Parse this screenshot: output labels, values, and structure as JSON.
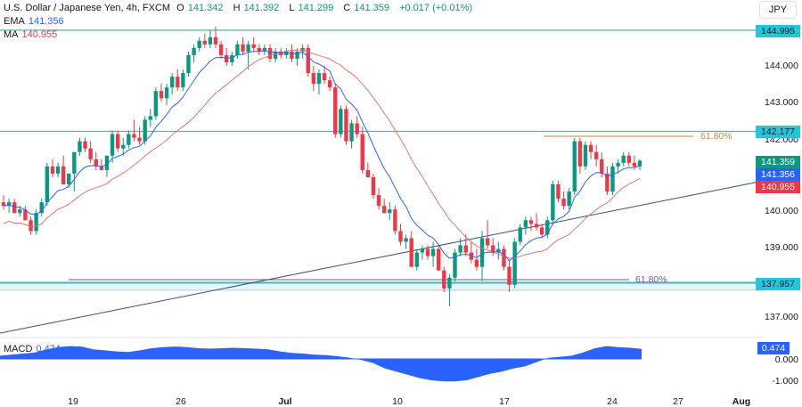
{
  "header": {
    "symbol": "U.S. Dollar / Japanese Yen, 4h, FXCM",
    "open_label": "O",
    "open": "141.342",
    "high_label": "H",
    "high": "141.392",
    "low_label": "L",
    "low": "141.299",
    "close_label": "C",
    "close": "141.359",
    "change": "+0.017 (+0.01%)",
    "ema_label": "EMA",
    "ema_value": "141.356",
    "ma_label": "MA",
    "ma_value": "140.955",
    "currency": "JPY"
  },
  "price_axis": {
    "ticks": [
      "144.000",
      "143.000",
      "142.000",
      "140.000",
      "139.000",
      "137.000"
    ],
    "labels": {
      "resistance_top": "144.995",
      "resistance_mid": "142.177",
      "last_price": "141.359",
      "ema": "141.356",
      "ma": "140.955",
      "support": "137.957"
    }
  },
  "annotations": {
    "fib_upper": "61.80%",
    "fib_lower": "61.80%"
  },
  "macd": {
    "label": "MACD",
    "value": "0.474",
    "ticks": [
      "0.000",
      "-1.000"
    ]
  },
  "time_axis": [
    "19",
    "26",
    "Jul",
    "10",
    "17",
    "24",
    "27",
    "Aug"
  ],
  "colors": {
    "up": "#089981",
    "down": "#f23645",
    "ema": "#2962ff",
    "ma": "#e57373",
    "hline": "#4fb3bf",
    "trend": "#3c4d7a",
    "macd": "#2962ff",
    "fib_upper": "#c98a3e",
    "fib_lower": "#6a5a9a"
  },
  "chart_data": {
    "type": "candlestick",
    "title": "U.S. Dollar / Japanese Yen, 4h, FXCM",
    "ylabel": "JPY",
    "ylim": [
      136.6,
      145.4
    ],
    "x_tick_labels": [
      "19",
      "26",
      "Jul",
      "10",
      "17",
      "24",
      "27",
      "Aug"
    ],
    "horizontal_levels": [
      144.995,
      142.177,
      137.957
    ],
    "fib_levels": [
      {
        "label": "61.80%",
        "price": 142.05
      },
      {
        "label": "61.80%",
        "price": 138.05
      }
    ],
    "candles": [
      [
        140.2,
        140.4,
        140.0,
        140.1
      ],
      [
        140.1,
        140.3,
        139.9,
        140.2
      ],
      [
        140.2,
        140.3,
        139.9,
        139.9
      ],
      [
        139.9,
        140.1,
        139.8,
        140.0
      ],
      [
        140.0,
        140.1,
        139.7,
        139.7
      ],
      [
        139.7,
        139.8,
        139.3,
        139.4
      ],
      [
        139.4,
        140.0,
        139.3,
        139.9
      ],
      [
        139.9,
        140.3,
        139.8,
        140.2
      ],
      [
        140.2,
        141.3,
        140.1,
        141.2
      ],
      [
        141.2,
        141.4,
        140.9,
        141.0
      ],
      [
        141.0,
        141.3,
        140.9,
        141.2
      ],
      [
        141.2,
        141.5,
        140.8,
        140.7
      ],
      [
        140.7,
        141.0,
        140.6,
        141.0
      ],
      [
        141.0,
        141.6,
        140.5,
        141.6
      ],
      [
        141.6,
        142.0,
        141.5,
        141.9
      ],
      [
        141.9,
        142.0,
        141.6,
        141.7
      ],
      [
        141.7,
        141.9,
        141.3,
        141.4
      ],
      [
        141.4,
        141.6,
        141.1,
        141.2
      ],
      [
        141.2,
        141.4,
        141.1,
        141.1
      ],
      [
        141.1,
        141.5,
        140.9,
        141.5
      ],
      [
        141.5,
        142.2,
        141.3,
        142.1
      ],
      [
        142.1,
        142.2,
        141.6,
        141.7
      ],
      [
        141.7,
        142.0,
        141.5,
        141.8
      ],
      [
        141.8,
        142.2,
        141.7,
        142.1
      ],
      [
        142.1,
        142.5,
        141.9,
        142.0
      ],
      [
        142.0,
        142.3,
        141.8,
        141.9
      ],
      [
        141.9,
        142.6,
        141.8,
        142.5
      ],
      [
        142.5,
        142.8,
        142.3,
        142.6
      ],
      [
        142.6,
        143.4,
        142.5,
        143.3
      ],
      [
        143.3,
        143.5,
        143.0,
        143.1
      ],
      [
        143.1,
        143.5,
        142.9,
        143.4
      ],
      [
        143.4,
        143.8,
        143.2,
        143.7
      ],
      [
        143.7,
        143.9,
        143.3,
        143.4
      ],
      [
        143.4,
        143.9,
        143.3,
        143.8
      ],
      [
        143.8,
        144.4,
        143.7,
        144.3
      ],
      [
        144.3,
        144.6,
        144.1,
        144.5
      ],
      [
        144.5,
        144.8,
        144.4,
        144.7
      ],
      [
        144.7,
        144.9,
        144.5,
        144.6
      ],
      [
        144.6,
        145.0,
        144.5,
        144.8
      ],
      [
        144.8,
        145.1,
        144.5,
        144.6
      ],
      [
        144.6,
        144.7,
        144.2,
        144.3
      ],
      [
        144.3,
        144.5,
        144.0,
        144.1
      ],
      [
        144.1,
        144.4,
        144.0,
        144.3
      ],
      [
        144.3,
        144.7,
        144.2,
        144.6
      ],
      [
        144.6,
        144.8,
        144.3,
        144.4
      ],
      [
        144.4,
        144.7,
        143.9,
        144.6
      ],
      [
        144.6,
        144.8,
        144.4,
        144.5
      ],
      [
        144.5,
        144.6,
        144.3,
        144.4
      ],
      [
        144.4,
        144.6,
        144.3,
        144.5
      ],
      [
        144.5,
        144.6,
        144.1,
        144.2
      ],
      [
        144.2,
        144.5,
        144.1,
        144.4
      ],
      [
        144.4,
        144.5,
        144.2,
        144.3
      ],
      [
        144.3,
        144.5,
        144.2,
        144.4
      ],
      [
        144.4,
        144.6,
        144.1,
        144.2
      ],
      [
        144.2,
        144.5,
        144.0,
        144.4
      ],
      [
        144.4,
        144.6,
        144.2,
        144.5
      ],
      [
        144.5,
        144.6,
        143.7,
        143.8
      ],
      [
        143.8,
        144.0,
        143.3,
        143.5
      ],
      [
        143.5,
        143.9,
        143.2,
        143.8
      ],
      [
        143.8,
        144.0,
        143.5,
        143.6
      ],
      [
        143.6,
        143.7,
        143.3,
        143.4
      ],
      [
        143.4,
        143.5,
        142.0,
        142.1
      ],
      [
        142.1,
        142.9,
        142.0,
        142.8
      ],
      [
        142.8,
        142.9,
        141.8,
        141.9
      ],
      [
        141.9,
        142.5,
        141.7,
        142.4
      ],
      [
        142.4,
        142.6,
        142.0,
        142.1
      ],
      [
        142.1,
        142.3,
        141.0,
        141.1
      ],
      [
        141.1,
        141.3,
        140.9,
        140.9
      ],
      [
        140.9,
        141.0,
        140.3,
        140.4
      ],
      [
        140.4,
        140.6,
        140.0,
        140.1
      ],
      [
        140.1,
        140.3,
        139.9,
        139.9
      ],
      [
        139.9,
        140.2,
        139.7,
        140.0
      ],
      [
        140.0,
        140.1,
        139.3,
        139.4
      ],
      [
        139.4,
        139.6,
        139.0,
        139.1
      ],
      [
        139.1,
        139.3,
        138.9,
        139.2
      ],
      [
        139.2,
        139.4,
        138.4,
        138.4
      ],
      [
        138.4,
        138.9,
        138.3,
        138.8
      ],
      [
        138.8,
        139.0,
        138.6,
        138.9
      ],
      [
        138.9,
        139.0,
        138.6,
        138.7
      ],
      [
        138.7,
        139.1,
        138.4,
        138.9
      ],
      [
        138.9,
        139.0,
        138.3,
        138.3
      ],
      [
        138.3,
        138.4,
        137.7,
        137.8
      ],
      [
        137.8,
        138.2,
        137.3,
        138.1
      ],
      [
        138.1,
        138.9,
        138.0,
        138.8
      ],
      [
        138.8,
        139.2,
        138.7,
        139.0
      ],
      [
        139.0,
        139.3,
        138.7,
        138.8
      ],
      [
        138.8,
        139.1,
        138.5,
        138.6
      ],
      [
        138.6,
        138.9,
        138.3,
        138.4
      ],
      [
        138.4,
        139.4,
        138.0,
        139.2
      ],
      [
        139.2,
        139.7,
        138.9,
        139.0
      ],
      [
        139.0,
        139.2,
        138.7,
        138.8
      ],
      [
        138.8,
        139.1,
        138.6,
        138.9
      ],
      [
        138.9,
        139.0,
        138.3,
        138.4
      ],
      [
        138.4,
        138.6,
        137.7,
        137.9
      ],
      [
        137.9,
        139.2,
        137.8,
        139.1
      ],
      [
        139.1,
        139.6,
        139.0,
        139.5
      ],
      [
        139.5,
        139.8,
        139.3,
        139.7
      ],
      [
        139.7,
        139.8,
        139.4,
        139.6
      ],
      [
        139.6,
        139.9,
        139.4,
        139.5
      ],
      [
        139.5,
        139.6,
        139.2,
        139.3
      ],
      [
        139.3,
        139.8,
        139.2,
        139.7
      ],
      [
        139.7,
        140.8,
        139.6,
        140.7
      ],
      [
        140.7,
        140.8,
        140.2,
        140.3
      ],
      [
        140.3,
        140.5,
        140.0,
        140.1
      ],
      [
        140.1,
        140.6,
        140.0,
        140.5
      ],
      [
        140.5,
        142.0,
        140.4,
        141.9
      ],
      [
        141.9,
        142.0,
        141.0,
        141.2
      ],
      [
        141.2,
        141.9,
        141.1,
        141.8
      ],
      [
        141.8,
        141.9,
        141.4,
        141.6
      ],
      [
        141.6,
        141.8,
        141.2,
        141.4
      ],
      [
        141.4,
        141.6,
        140.9,
        141.0
      ],
      [
        141.0,
        141.2,
        140.4,
        140.5
      ],
      [
        140.5,
        141.3,
        140.4,
        141.2
      ],
      [
        141.2,
        141.4,
        141.0,
        141.3
      ],
      [
        141.3,
        141.6,
        141.2,
        141.5
      ],
      [
        141.5,
        141.6,
        141.2,
        141.3
      ],
      [
        141.3,
        141.5,
        141.1,
        141.2
      ],
      [
        141.2,
        141.4,
        141.1,
        141.36
      ]
    ],
    "macd_values": [
      0.15,
      0.2,
      0.25,
      0.3,
      0.45,
      0.55,
      0.6,
      0.58,
      0.45,
      0.4,
      0.35,
      0.32,
      0.4,
      0.5,
      0.55,
      0.58,
      0.55,
      0.5,
      0.48,
      0.5,
      0.52,
      0.5,
      0.48,
      0.45,
      0.35,
      0.28,
      0.25,
      0.2,
      0.18,
      0.12,
      0.05,
      -0.05,
      -0.2,
      -0.45,
      -0.6,
      -0.75,
      -0.9,
      -1.0,
      -1.05,
      -1.05,
      -1.0,
      -0.85,
      -0.7,
      -0.6,
      -0.45,
      -0.35,
      -0.15,
      0.05,
      0.1,
      0.15,
      0.3,
      0.5,
      0.6,
      0.55,
      0.52,
      0.47
    ]
  }
}
